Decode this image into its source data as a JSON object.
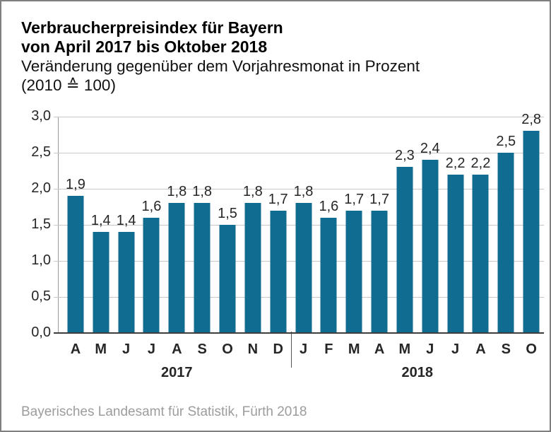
{
  "header": {
    "title_line1": "Verbraucherpreisindex für Bayern",
    "title_line2": "von April 2017 bis Oktober 2018",
    "subtitle_line1": "Veränderung gegenüber dem Vorjahresmonat in Prozent",
    "subtitle_line2": "(2010 ≙ 100)"
  },
  "footer": {
    "source": "Bayerisches Landesamt für Statistik, Fürth 2018"
  },
  "chart_data": {
    "type": "bar",
    "title": "Verbraucherpreisindex für Bayern von April 2017 bis Oktober 2018",
    "subtitle": "Veränderung gegenüber dem Vorjahresmonat in Prozent (2010 ≙ 100)",
    "categories": [
      "A",
      "M",
      "J",
      "J",
      "A",
      "S",
      "O",
      "N",
      "D",
      "J",
      "F",
      "M",
      "A",
      "M",
      "J",
      "J",
      "A",
      "S",
      "O"
    ],
    "values": [
      1.9,
      1.4,
      1.4,
      1.6,
      1.8,
      1.8,
      1.5,
      1.8,
      1.7,
      1.8,
      1.6,
      1.7,
      1.7,
      2.3,
      2.4,
      2.2,
      2.2,
      2.5,
      2.8
    ],
    "value_labels": [
      "1,9",
      "1,4",
      "1,4",
      "1,6",
      "1,8",
      "1,8",
      "1,5",
      "1,8",
      "1,7",
      "1,8",
      "1,6",
      "1,7",
      "1,7",
      "2,3",
      "2,4",
      "2,2",
      "2,2",
      "2,5",
      "2,8"
    ],
    "y_ticks": [
      "3,0",
      "2,5",
      "2,0",
      "1,5",
      "1,0",
      "0,5",
      "0,0"
    ],
    "ylim": [
      0,
      3.0
    ],
    "grid": true,
    "legend": "none",
    "groups": [
      {
        "label": "2017",
        "start": 0,
        "count": 9
      },
      {
        "label": "2018",
        "start": 9,
        "count": 10
      }
    ],
    "bar_color": "#116c92",
    "grid_color": "#c7c7c7",
    "xlabel": "",
    "ylabel": ""
  }
}
